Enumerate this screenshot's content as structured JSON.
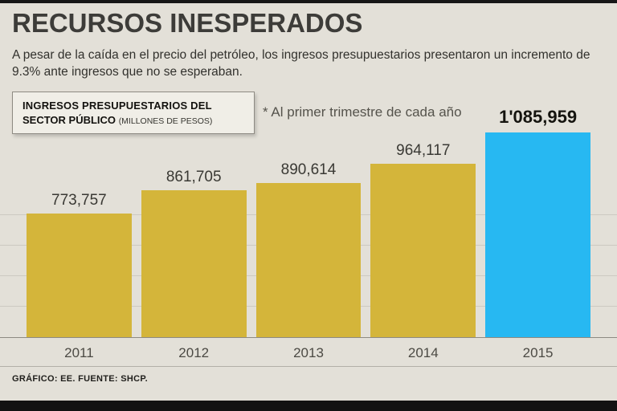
{
  "page": {
    "title": "RECURSOS INESPERADOS",
    "subtitle": "A pesar de la caída en el precio del petróleo, los ingresos presupuestarios presentaron un incremento de 9.3% ante ingresos que no se esperaban.",
    "footer": "GRÁFICO: EE. FUENTE: SHCP.",
    "background_color": "#e3e0d8"
  },
  "legend_box": {
    "line1": "INGRESOS PRESUPUESTARIOS DEL",
    "line2_bold": "SECTOR PÚBLICO",
    "line2_small": "(MILLONES DE PESOS)"
  },
  "note": "* Al primer trimestre de cada año",
  "chart_data": {
    "type": "bar",
    "title": "INGRESOS PRESUPUESTARIOS DEL SECTOR PÚBLICO (MILLONES DE PESOS)",
    "categories": [
      "2011",
      "2012",
      "2013",
      "2014",
      "2015"
    ],
    "values": [
      773757,
      861705,
      890614,
      964117,
      1085959
    ],
    "value_labels": [
      "773,757",
      "861,705",
      "890,614",
      "964,117",
      "1'085,959"
    ],
    "highlight_index": 4,
    "bar_color": "#d4b53a",
    "highlight_color": "#27b8f2",
    "xlabel": "",
    "ylabel": "",
    "ylim": [
      300000,
      1100000
    ],
    "grid": true,
    "legend_position": "none",
    "note": "* Al primer trimestre de cada año"
  }
}
